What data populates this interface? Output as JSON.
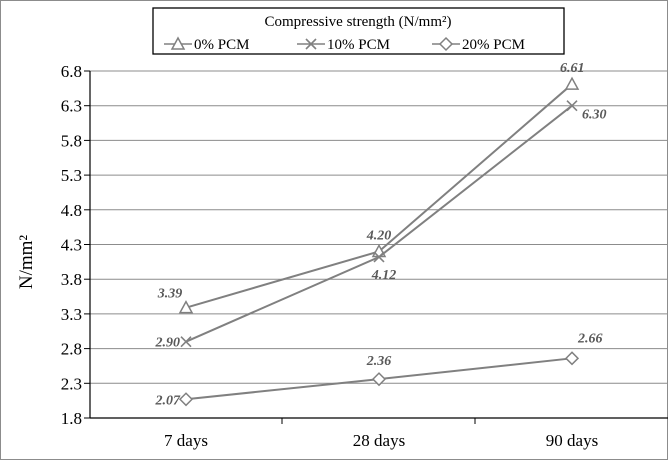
{
  "chart_data": {
    "type": "line",
    "legend_title": "Compressive strength (N/mm²)",
    "legend_position": "top-center",
    "categories": [
      "7 days",
      "28 days",
      "90 days"
    ],
    "ylabel": "N/mm²",
    "ylim": [
      1.8,
      6.8
    ],
    "yticks": [
      "1.8",
      "2.3",
      "2.8",
      "3.3",
      "3.8",
      "4.3",
      "4.8",
      "5.3",
      "5.8",
      "6.3",
      "6.8"
    ],
    "grid": true,
    "series": [
      {
        "name": "0% PCM",
        "marker": "triangle",
        "values": [
          3.39,
          4.2,
          6.61
        ],
        "labels": [
          "3.39",
          "4.20",
          "6.61"
        ]
      },
      {
        "name": "10% PCM",
        "marker": "x",
        "values": [
          2.9,
          4.12,
          6.3
        ],
        "labels": [
          "2.90",
          "4.12",
          "6.30"
        ]
      },
      {
        "name": "20% PCM",
        "marker": "diamond",
        "values": [
          2.07,
          2.36,
          2.66
        ],
        "labels": [
          "2.07",
          "2.36",
          "2.66"
        ]
      }
    ],
    "line_color": "#808080",
    "grid_color": "#8c8c8c"
  }
}
